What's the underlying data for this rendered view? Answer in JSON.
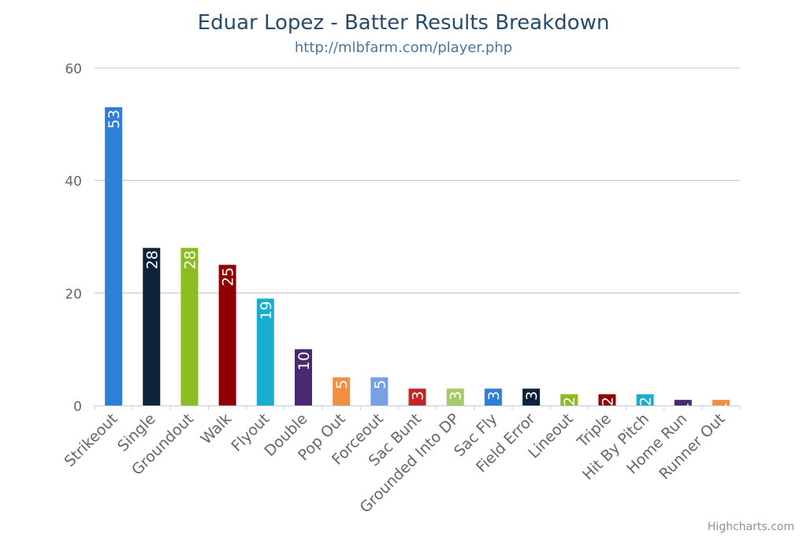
{
  "chart_data": {
    "type": "bar",
    "title": "Eduar Lopez - Batter Results Breakdown",
    "subtitle": "http://mlbfarm.com/player.php",
    "credits": "Highcharts.com",
    "categories": [
      "Strikeout",
      "Single",
      "Groundout",
      "Walk",
      "Flyout",
      "Double",
      "Pop Out",
      "Forceout",
      "Sac Bunt",
      "Grounded Into DP",
      "Sac Fly",
      "Field Error",
      "Lineout",
      "Triple",
      "Hit By Pitch",
      "Home Run",
      "Runner Out"
    ],
    "values": [
      53,
      28,
      28,
      25,
      19,
      10,
      5,
      5,
      3,
      3,
      3,
      3,
      2,
      2,
      2,
      1,
      1
    ],
    "colors": [
      "#2f7ed8",
      "#0d233a",
      "#8bbc21",
      "#910000",
      "#1aadce",
      "#492970",
      "#f28f43",
      "#77a1e5",
      "#c42525",
      "#a6c96a",
      "#2f7ed8",
      "#0d233a",
      "#8bbc21",
      "#910000",
      "#1aadce",
      "#492970",
      "#f28f43"
    ],
    "yticks": [
      0,
      20,
      40,
      60
    ],
    "ylim": [
      0,
      60
    ],
    "grid": true,
    "legend": "none"
  }
}
